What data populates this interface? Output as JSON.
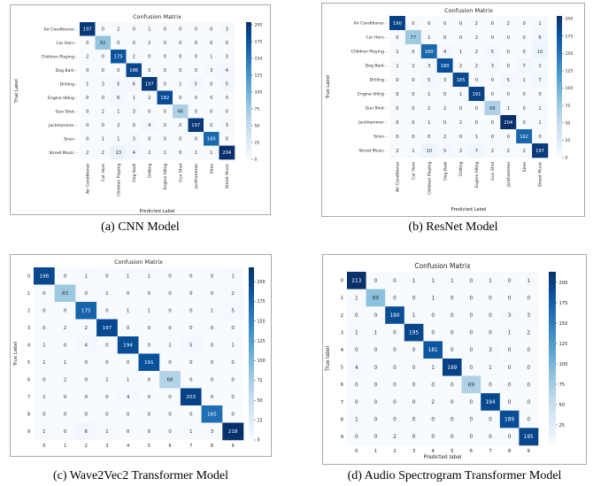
{
  "captions": [
    "(a) CNN Model",
    "(b) ResNet Model",
    "(c) Wave2Vec2 Transformer Model",
    "(d) Audio Spectrogram Transformer Model"
  ],
  "chart_data": [
    {
      "type": "heatmap",
      "title": "Confusion Matrix",
      "xlabel": "Predicted Label",
      "ylabel": "True Label",
      "labels": [
        "Air Conditioner",
        "Car Horn",
        "Children Playing",
        "Dog Bark",
        "Drilling",
        "Engine Idling",
        "Gun Shot",
        "Jackhammer",
        "Siren",
        "Street Music"
      ],
      "matrix": [
        [
          197,
          0,
          2,
          0,
          1,
          0,
          0,
          0,
          0,
          3
        ],
        [
          0,
          82,
          0,
          0,
          2,
          0,
          0,
          0,
          0,
          0
        ],
        [
          2,
          0,
          175,
          2,
          0,
          0,
          0,
          0,
          1,
          3
        ],
        [
          0,
          0,
          0,
          186,
          0,
          0,
          0,
          0,
          3,
          4
        ],
        [
          1,
          3,
          5,
          6,
          197,
          0,
          1,
          5,
          0,
          5
        ],
        [
          0,
          0,
          6,
          1,
          2,
          182,
          0,
          0,
          0,
          0
        ],
        [
          0,
          2,
          1,
          3,
          0,
          0,
          66,
          0,
          0,
          0
        ],
        [
          0,
          0,
          2,
          0,
          4,
          0,
          0,
          197,
          0,
          3
        ],
        [
          0,
          1,
          1,
          3,
          0,
          0,
          0,
          0,
          160,
          0
        ],
        [
          2,
          2,
          13,
          4,
          2,
          1,
          0,
          1,
          1,
          204
        ]
      ],
      "colorbar_ticks": [
        0,
        25,
        50,
        75,
        100,
        125,
        150,
        175,
        200
      ],
      "vmax": 204
    },
    {
      "type": "heatmap",
      "title": "Confusion Matrix",
      "xlabel": "Predicted Label",
      "ylabel": "True Label",
      "labels": [
        "Air Conditioner",
        "Car Horn",
        "Children Playing",
        "Dog Bark",
        "Drilling",
        "Engine Idling",
        "Gun Shot",
        "Jackhammer",
        "Siren",
        "Street Music"
      ],
      "matrix": [
        [
          190,
          0,
          0,
          0,
          0,
          2,
          0,
          2,
          0,
          1
        ],
        [
          0,
          77,
          1,
          0,
          0,
          2,
          0,
          0,
          0,
          6
        ],
        [
          1,
          0,
          160,
          4,
          1,
          2,
          5,
          0,
          0,
          10
        ],
        [
          1,
          2,
          3,
          180,
          2,
          2,
          3,
          0,
          7,
          2
        ],
        [
          0,
          0,
          5,
          3,
          185,
          0,
          0,
          5,
          1,
          7
        ],
        [
          0,
          0,
          1,
          0,
          1,
          191,
          0,
          0,
          0,
          0
        ],
        [
          0,
          0,
          2,
          2,
          0,
          0,
          66,
          1,
          0,
          1
        ],
        [
          0,
          0,
          1,
          0,
          2,
          0,
          0,
          204,
          0,
          1
        ],
        [
          0,
          0,
          0,
          2,
          0,
          1,
          0,
          0,
          162,
          0
        ],
        [
          2,
          1,
          10,
          5,
          2,
          7,
          2,
          2,
          2,
          197
        ]
      ],
      "colorbar_ticks": [
        0,
        25,
        50,
        75,
        100,
        125,
        150,
        175,
        200
      ],
      "vmax": 204
    },
    {
      "type": "heatmap",
      "title": "Confusion Matrix",
      "xlabel": "",
      "ylabel": "True Label",
      "labels": [
        "0",
        "1",
        "2",
        "3",
        "4",
        "5",
        "6",
        "7",
        "8",
        "9"
      ],
      "matrix": [
        [
          198,
          0,
          1,
          0,
          1,
          1,
          0,
          0,
          0,
          1
        ],
        [
          0,
          83,
          0,
          1,
          0,
          0,
          0,
          0,
          0,
          2
        ],
        [
          0,
          0,
          175,
          0,
          1,
          1,
          0,
          0,
          1,
          5
        ],
        [
          0,
          2,
          2,
          197,
          0,
          0,
          0,
          0,
          0,
          0
        ],
        [
          1,
          0,
          4,
          0,
          194,
          0,
          1,
          5,
          0,
          1
        ],
        [
          1,
          1,
          0,
          0,
          0,
          191,
          0,
          0,
          0,
          0
        ],
        [
          0,
          2,
          0,
          1,
          1,
          0,
          68,
          0,
          0,
          0
        ],
        [
          1,
          0,
          0,
          0,
          4,
          0,
          0,
          203,
          0,
          0
        ],
        [
          0,
          0,
          0,
          0,
          0,
          0,
          0,
          0,
          165,
          0
        ],
        [
          1,
          0,
          6,
          1,
          0,
          0,
          0,
          1,
          3,
          218
        ]
      ],
      "colorbar_ticks": [
        0,
        25,
        50,
        75,
        100,
        125,
        150,
        175,
        200
      ],
      "vmax": 218
    },
    {
      "type": "heatmap",
      "title": "Confusion Matrix",
      "xlabel": "Predicted label",
      "ylabel": "True label",
      "labels": [
        "0",
        "1",
        "2",
        "3",
        "4",
        "5",
        "6",
        "7",
        "8",
        "9"
      ],
      "matrix": [
        [
          213,
          0,
          0,
          1,
          1,
          1,
          0,
          1,
          0,
          1
        ],
        [
          1,
          89,
          0,
          0,
          1,
          0,
          0,
          0,
          0,
          0
        ],
        [
          0,
          0,
          190,
          1,
          0,
          0,
          0,
          0,
          3,
          3
        ],
        [
          1,
          1,
          0,
          195,
          0,
          0,
          0,
          0,
          1,
          2
        ],
        [
          0,
          0,
          0,
          0,
          181,
          0,
          0,
          3,
          0,
          0
        ],
        [
          4,
          0,
          0,
          0,
          1,
          199,
          0,
          1,
          0,
          0
        ],
        [
          0,
          0,
          0,
          0,
          0,
          0,
          69,
          0,
          0,
          0
        ],
        [
          0,
          0,
          0,
          0,
          2,
          0,
          0,
          194,
          0,
          0
        ],
        [
          1,
          0,
          0,
          0,
          0,
          0,
          0,
          0,
          189,
          0
        ],
        [
          0,
          0,
          2,
          0,
          0,
          0,
          0,
          0,
          0,
          195
        ]
      ],
      "colorbar_ticks": [
        25,
        50,
        75,
        100,
        125,
        150,
        175,
        200
      ],
      "vmax": 213
    }
  ]
}
